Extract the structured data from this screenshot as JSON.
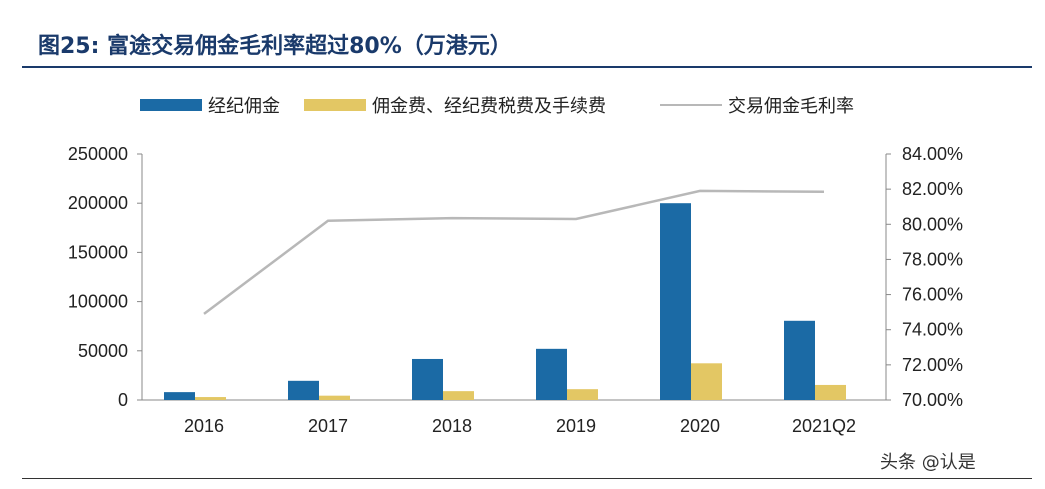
{
  "title": "图25:  富途交易佣金毛利率超过80%（万港元）",
  "watermark": "头条 @认是",
  "chart_data": {
    "type": "bar+line",
    "title": "图25:  富途交易佣金毛利率超过80%（万港元）",
    "categories": [
      "2016",
      "2017",
      "2018",
      "2019",
      "2020",
      "2021Q2"
    ],
    "series": [
      {
        "name": "经纪佣金",
        "type": "bar",
        "axis": "left",
        "color": "#1b6aa5",
        "values": [
          8000,
          19500,
          41700,
          52000,
          200000,
          80500
        ]
      },
      {
        "name": "佣金费、经纪费税费及手续费",
        "type": "bar",
        "axis": "left",
        "color": "#e3c764",
        "values": [
          3000,
          4400,
          9000,
          11000,
          37300,
          15300
        ]
      },
      {
        "name": "交易佣金毛利率",
        "type": "line",
        "axis": "right",
        "color": "#b8b8b8",
        "values": [
          74.9,
          80.2,
          80.35,
          80.3,
          81.9,
          81.85
        ]
      }
    ],
    "left_axis": {
      "ylim": [
        0,
        250000
      ],
      "ticks": [
        "0",
        "50000",
        "100000",
        "150000",
        "200000",
        "250000"
      ]
    },
    "right_axis": {
      "ylim": [
        70,
        84
      ],
      "ticks": [
        "70.00%",
        "72.00%",
        "74.00%",
        "76.00%",
        "78.00%",
        "80.00%",
        "82.00%",
        "84.00%"
      ]
    },
    "legend_placement": "top",
    "grid": false
  }
}
